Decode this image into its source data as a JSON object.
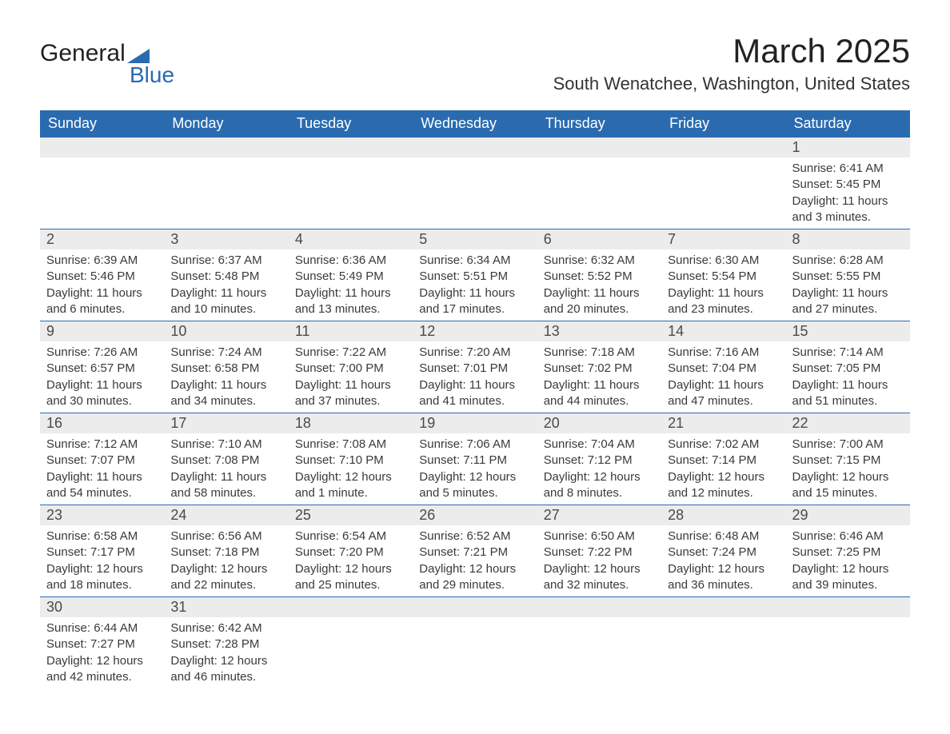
{
  "logo": {
    "part1": "General",
    "part2": "Blue"
  },
  "title": "March 2025",
  "subtitle": "South Wenatchee, Washington, United States",
  "colors": {
    "header_bg": "#2a6bb0",
    "header_text": "#ffffff",
    "daynum_bg": "#ececec",
    "body_text": "#3a3a3a",
    "page_bg": "#ffffff"
  },
  "fonts": {
    "title_size": 42,
    "subtitle_size": 22,
    "header_size": 18,
    "body_size": 15
  },
  "weekdays": [
    "Sunday",
    "Monday",
    "Tuesday",
    "Wednesday",
    "Thursday",
    "Friday",
    "Saturday"
  ],
  "grid": [
    [
      {
        "empty": true
      },
      {
        "empty": true
      },
      {
        "empty": true
      },
      {
        "empty": true
      },
      {
        "empty": true
      },
      {
        "empty": true
      },
      {
        "day": "1",
        "sunrise": "Sunrise: 6:41 AM",
        "sunset": "Sunset: 5:45 PM",
        "daylight1": "Daylight: 11 hours",
        "daylight2": "and 3 minutes."
      }
    ],
    [
      {
        "day": "2",
        "sunrise": "Sunrise: 6:39 AM",
        "sunset": "Sunset: 5:46 PM",
        "daylight1": "Daylight: 11 hours",
        "daylight2": "and 6 minutes."
      },
      {
        "day": "3",
        "sunrise": "Sunrise: 6:37 AM",
        "sunset": "Sunset: 5:48 PM",
        "daylight1": "Daylight: 11 hours",
        "daylight2": "and 10 minutes."
      },
      {
        "day": "4",
        "sunrise": "Sunrise: 6:36 AM",
        "sunset": "Sunset: 5:49 PM",
        "daylight1": "Daylight: 11 hours",
        "daylight2": "and 13 minutes."
      },
      {
        "day": "5",
        "sunrise": "Sunrise: 6:34 AM",
        "sunset": "Sunset: 5:51 PM",
        "daylight1": "Daylight: 11 hours",
        "daylight2": "and 17 minutes."
      },
      {
        "day": "6",
        "sunrise": "Sunrise: 6:32 AM",
        "sunset": "Sunset: 5:52 PM",
        "daylight1": "Daylight: 11 hours",
        "daylight2": "and 20 minutes."
      },
      {
        "day": "7",
        "sunrise": "Sunrise: 6:30 AM",
        "sunset": "Sunset: 5:54 PM",
        "daylight1": "Daylight: 11 hours",
        "daylight2": "and 23 minutes."
      },
      {
        "day": "8",
        "sunrise": "Sunrise: 6:28 AM",
        "sunset": "Sunset: 5:55 PM",
        "daylight1": "Daylight: 11 hours",
        "daylight2": "and 27 minutes."
      }
    ],
    [
      {
        "day": "9",
        "sunrise": "Sunrise: 7:26 AM",
        "sunset": "Sunset: 6:57 PM",
        "daylight1": "Daylight: 11 hours",
        "daylight2": "and 30 minutes."
      },
      {
        "day": "10",
        "sunrise": "Sunrise: 7:24 AM",
        "sunset": "Sunset: 6:58 PM",
        "daylight1": "Daylight: 11 hours",
        "daylight2": "and 34 minutes."
      },
      {
        "day": "11",
        "sunrise": "Sunrise: 7:22 AM",
        "sunset": "Sunset: 7:00 PM",
        "daylight1": "Daylight: 11 hours",
        "daylight2": "and 37 minutes."
      },
      {
        "day": "12",
        "sunrise": "Sunrise: 7:20 AM",
        "sunset": "Sunset: 7:01 PM",
        "daylight1": "Daylight: 11 hours",
        "daylight2": "and 41 minutes."
      },
      {
        "day": "13",
        "sunrise": "Sunrise: 7:18 AM",
        "sunset": "Sunset: 7:02 PM",
        "daylight1": "Daylight: 11 hours",
        "daylight2": "and 44 minutes."
      },
      {
        "day": "14",
        "sunrise": "Sunrise: 7:16 AM",
        "sunset": "Sunset: 7:04 PM",
        "daylight1": "Daylight: 11 hours",
        "daylight2": "and 47 minutes."
      },
      {
        "day": "15",
        "sunrise": "Sunrise: 7:14 AM",
        "sunset": "Sunset: 7:05 PM",
        "daylight1": "Daylight: 11 hours",
        "daylight2": "and 51 minutes."
      }
    ],
    [
      {
        "day": "16",
        "sunrise": "Sunrise: 7:12 AM",
        "sunset": "Sunset: 7:07 PM",
        "daylight1": "Daylight: 11 hours",
        "daylight2": "and 54 minutes."
      },
      {
        "day": "17",
        "sunrise": "Sunrise: 7:10 AM",
        "sunset": "Sunset: 7:08 PM",
        "daylight1": "Daylight: 11 hours",
        "daylight2": "and 58 minutes."
      },
      {
        "day": "18",
        "sunrise": "Sunrise: 7:08 AM",
        "sunset": "Sunset: 7:10 PM",
        "daylight1": "Daylight: 12 hours",
        "daylight2": "and 1 minute."
      },
      {
        "day": "19",
        "sunrise": "Sunrise: 7:06 AM",
        "sunset": "Sunset: 7:11 PM",
        "daylight1": "Daylight: 12 hours",
        "daylight2": "and 5 minutes."
      },
      {
        "day": "20",
        "sunrise": "Sunrise: 7:04 AM",
        "sunset": "Sunset: 7:12 PM",
        "daylight1": "Daylight: 12 hours",
        "daylight2": "and 8 minutes."
      },
      {
        "day": "21",
        "sunrise": "Sunrise: 7:02 AM",
        "sunset": "Sunset: 7:14 PM",
        "daylight1": "Daylight: 12 hours",
        "daylight2": "and 12 minutes."
      },
      {
        "day": "22",
        "sunrise": "Sunrise: 7:00 AM",
        "sunset": "Sunset: 7:15 PM",
        "daylight1": "Daylight: 12 hours",
        "daylight2": "and 15 minutes."
      }
    ],
    [
      {
        "day": "23",
        "sunrise": "Sunrise: 6:58 AM",
        "sunset": "Sunset: 7:17 PM",
        "daylight1": "Daylight: 12 hours",
        "daylight2": "and 18 minutes."
      },
      {
        "day": "24",
        "sunrise": "Sunrise: 6:56 AM",
        "sunset": "Sunset: 7:18 PM",
        "daylight1": "Daylight: 12 hours",
        "daylight2": "and 22 minutes."
      },
      {
        "day": "25",
        "sunrise": "Sunrise: 6:54 AM",
        "sunset": "Sunset: 7:20 PM",
        "daylight1": "Daylight: 12 hours",
        "daylight2": "and 25 minutes."
      },
      {
        "day": "26",
        "sunrise": "Sunrise: 6:52 AM",
        "sunset": "Sunset: 7:21 PM",
        "daylight1": "Daylight: 12 hours",
        "daylight2": "and 29 minutes."
      },
      {
        "day": "27",
        "sunrise": "Sunrise: 6:50 AM",
        "sunset": "Sunset: 7:22 PM",
        "daylight1": "Daylight: 12 hours",
        "daylight2": "and 32 minutes."
      },
      {
        "day": "28",
        "sunrise": "Sunrise: 6:48 AM",
        "sunset": "Sunset: 7:24 PM",
        "daylight1": "Daylight: 12 hours",
        "daylight2": "and 36 minutes."
      },
      {
        "day": "29",
        "sunrise": "Sunrise: 6:46 AM",
        "sunset": "Sunset: 7:25 PM",
        "daylight1": "Daylight: 12 hours",
        "daylight2": "and 39 minutes."
      }
    ],
    [
      {
        "day": "30",
        "sunrise": "Sunrise: 6:44 AM",
        "sunset": "Sunset: 7:27 PM",
        "daylight1": "Daylight: 12 hours",
        "daylight2": "and 42 minutes."
      },
      {
        "day": "31",
        "sunrise": "Sunrise: 6:42 AM",
        "sunset": "Sunset: 7:28 PM",
        "daylight1": "Daylight: 12 hours",
        "daylight2": "and 46 minutes."
      },
      {
        "empty": true
      },
      {
        "empty": true
      },
      {
        "empty": true
      },
      {
        "empty": true
      },
      {
        "empty": true
      }
    ]
  ]
}
